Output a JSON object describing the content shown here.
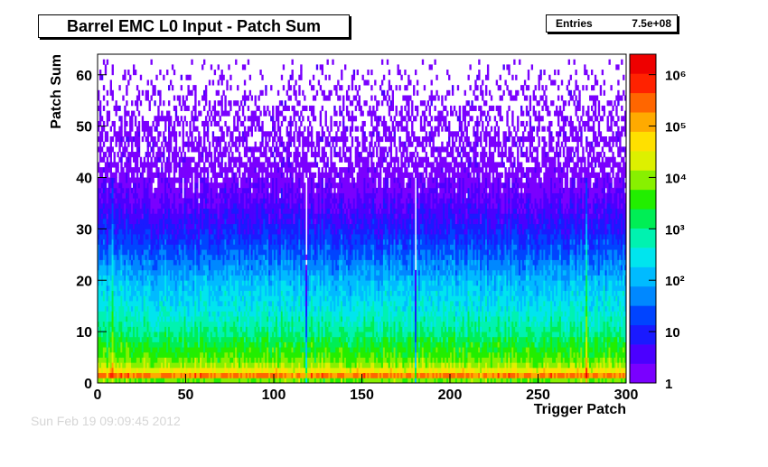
{
  "title": "Barrel EMC L0 Input - Patch Sum",
  "stats": {
    "label": "Entries",
    "value": "7.5e+08"
  },
  "footer_text": "Sun Feb 19 09:09:45 2012",
  "chart_data": {
    "type": "heatmap",
    "title": "Barrel EMC L0 Input - Patch Sum",
    "xlabel": "Trigger Patch",
    "ylabel": "Patch Sum",
    "xlim": [
      0,
      300
    ],
    "ylim": [
      0,
      64
    ],
    "x_ticks": [
      0,
      50,
      100,
      150,
      200,
      250,
      300
    ],
    "y_ticks": [
      0,
      10,
      20,
      30,
      40,
      50,
      60
    ],
    "z_scale": "log",
    "zlim": [
      1,
      2500000
    ],
    "z_tick_labels": [
      "1",
      "10",
      "10²",
      "10³",
      "10⁴",
      "10⁵",
      "10⁶"
    ],
    "z_tick_values": [
      1,
      10,
      100,
      1000,
      10000,
      100000,
      1000000
    ],
    "entries": "7.5e+08",
    "profile": {
      "patch_sum": [
        0,
        1,
        2,
        3,
        5,
        8,
        10,
        15,
        20,
        25,
        30,
        35,
        40,
        45,
        50,
        55,
        60,
        62
      ],
      "typical_count": [
        80,
        600000,
        80000,
        15000,
        5000,
        2000,
        900,
        300,
        120,
        30,
        8,
        3,
        1.5,
        1,
        1,
        1,
        1,
        1
      ]
    },
    "notable_columns": [
      {
        "x": 8,
        "note": "high column"
      },
      {
        "x": 118,
        "note": "low-count stripe"
      },
      {
        "x": 180,
        "note": "low-count stripe"
      },
      {
        "x": 277,
        "note": "high column"
      }
    ],
    "palette": [
      "#7a00ff",
      "#4b00ff",
      "#1a1aff",
      "#0044ff",
      "#0088ff",
      "#00bbff",
      "#00e5ee",
      "#00f2b0",
      "#00ee55",
      "#22ee00",
      "#88f000",
      "#ddf000",
      "#ffe000",
      "#ffaa00",
      "#ff6600",
      "#ff2200",
      "#ee0000"
    ],
    "grid": false
  }
}
